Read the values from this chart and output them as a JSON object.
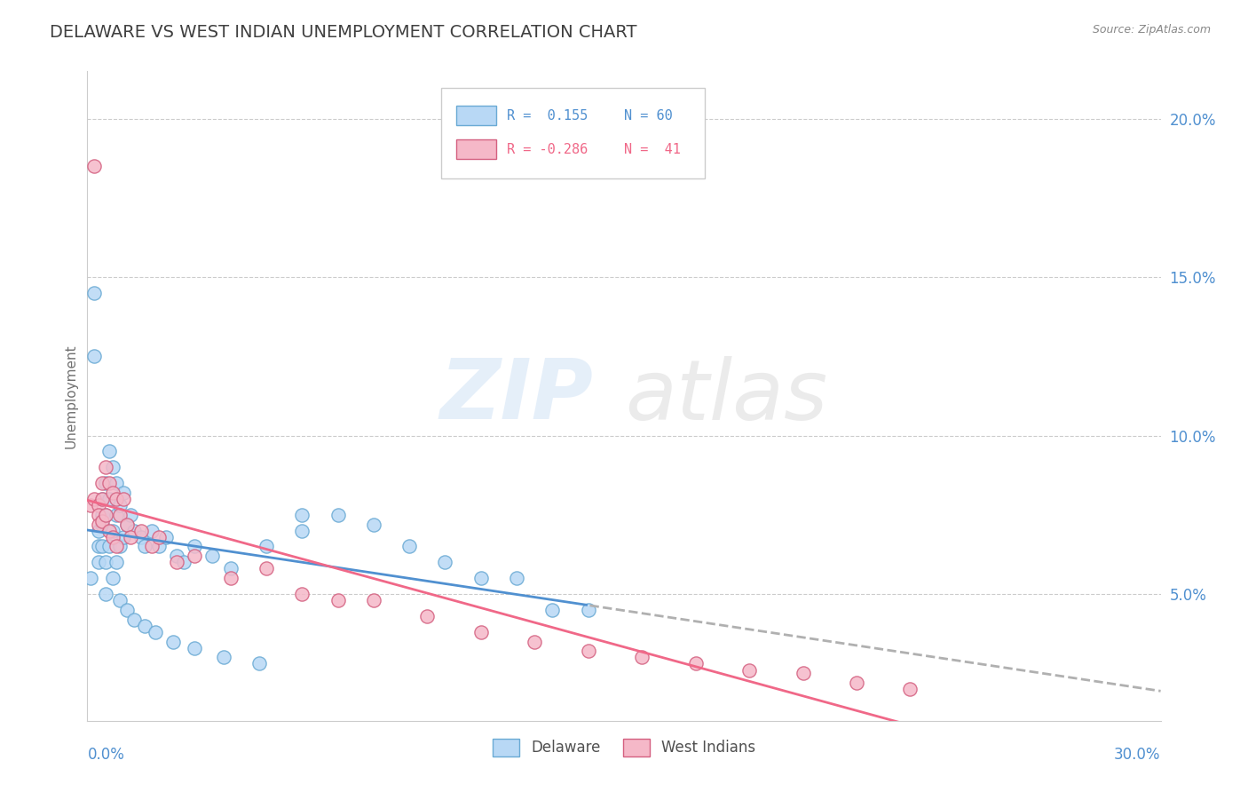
{
  "title": "DELAWARE VS WEST INDIAN UNEMPLOYMENT CORRELATION CHART",
  "source": "Source: ZipAtlas.com",
  "ylabel": "Unemployment",
  "xmin": 0.0,
  "xmax": 0.3,
  "ymin": 0.01,
  "ymax": 0.215,
  "yticks": [
    0.05,
    0.1,
    0.15,
    0.2
  ],
  "delaware_color": "#b8d8f5",
  "delaware_edge": "#6aaad4",
  "westindian_color": "#f5b8c8",
  "westindian_edge": "#d46080",
  "trend_del_color": "#5090d0",
  "trend_wi_color": "#f06888",
  "trend_ext_color": "#b0b0b0",
  "grid_color": "#cccccc",
  "title_color": "#404040",
  "source_color": "#888888",
  "axis_tick_color": "#5090d0",
  "ylabel_color": "#707070",
  "legend_R_del": "R =  0.155",
  "legend_N_del": "N = 60",
  "legend_R_wi": "R = -0.286",
  "legend_N_wi": "N =  41",
  "legend_del_color": "#5090d0",
  "legend_wi_color": "#f06888",
  "del_x": [
    0.001,
    0.002,
    0.002,
    0.003,
    0.003,
    0.003,
    0.004,
    0.004,
    0.004,
    0.004,
    0.005,
    0.005,
    0.005,
    0.006,
    0.006,
    0.006,
    0.007,
    0.007,
    0.008,
    0.008,
    0.008,
    0.009,
    0.009,
    0.01,
    0.01,
    0.011,
    0.012,
    0.013,
    0.015,
    0.016,
    0.018,
    0.02,
    0.022,
    0.025,
    0.027,
    0.03,
    0.035,
    0.04,
    0.05,
    0.06,
    0.07,
    0.08,
    0.09,
    0.1,
    0.11,
    0.12,
    0.13,
    0.14,
    0.005,
    0.007,
    0.009,
    0.011,
    0.013,
    0.016,
    0.019,
    0.024,
    0.03,
    0.038,
    0.048,
    0.06
  ],
  "del_y": [
    0.055,
    0.145,
    0.125,
    0.07,
    0.065,
    0.06,
    0.08,
    0.075,
    0.072,
    0.065,
    0.085,
    0.075,
    0.06,
    0.095,
    0.08,
    0.065,
    0.09,
    0.07,
    0.085,
    0.075,
    0.06,
    0.078,
    0.065,
    0.082,
    0.068,
    0.072,
    0.075,
    0.07,
    0.068,
    0.065,
    0.07,
    0.065,
    0.068,
    0.062,
    0.06,
    0.065,
    0.062,
    0.058,
    0.065,
    0.07,
    0.075,
    0.072,
    0.065,
    0.06,
    0.055,
    0.055,
    0.045,
    0.045,
    0.05,
    0.055,
    0.048,
    0.045,
    0.042,
    0.04,
    0.038,
    0.035,
    0.033,
    0.03,
    0.028,
    0.075
  ],
  "wi_x": [
    0.001,
    0.002,
    0.002,
    0.003,
    0.003,
    0.003,
    0.004,
    0.004,
    0.004,
    0.005,
    0.005,
    0.006,
    0.006,
    0.007,
    0.007,
    0.008,
    0.008,
    0.009,
    0.01,
    0.011,
    0.012,
    0.015,
    0.018,
    0.02,
    0.025,
    0.03,
    0.04,
    0.05,
    0.06,
    0.07,
    0.08,
    0.095,
    0.11,
    0.125,
    0.14,
    0.155,
    0.17,
    0.185,
    0.2,
    0.215,
    0.23
  ],
  "wi_y": [
    0.078,
    0.185,
    0.08,
    0.078,
    0.075,
    0.072,
    0.085,
    0.08,
    0.073,
    0.09,
    0.075,
    0.085,
    0.07,
    0.082,
    0.068,
    0.08,
    0.065,
    0.075,
    0.08,
    0.072,
    0.068,
    0.07,
    0.065,
    0.068,
    0.06,
    0.062,
    0.055,
    0.058,
    0.05,
    0.048,
    0.048,
    0.043,
    0.038,
    0.035,
    0.032,
    0.03,
    0.028,
    0.026,
    0.025,
    0.022,
    0.02
  ]
}
